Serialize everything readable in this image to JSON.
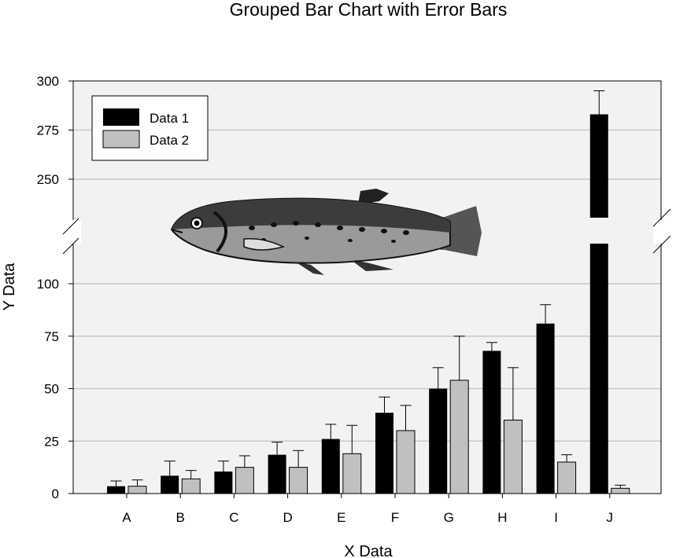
{
  "chart_data": {
    "type": "bar",
    "title": "Grouped Bar Chart with Error Bars",
    "xlabel": "X Data",
    "ylabel": "Y Data",
    "categories": [
      "A",
      "B",
      "C",
      "D",
      "E",
      "F",
      "G",
      "H",
      "I",
      "J"
    ],
    "series": [
      {
        "name": "Data 1",
        "color": "#000000",
        "values": [
          3.5,
          8.5,
          10.5,
          18.5,
          26,
          38.5,
          50,
          68,
          81,
          283
        ],
        "error_plus": [
          2.5,
          7,
          5,
          6,
          7,
          7.5,
          10,
          4,
          9,
          12
        ]
      },
      {
        "name": "Data 2",
        "color": "#c0c0c0",
        "values": [
          3.5,
          7,
          12.5,
          12.5,
          19,
          30,
          54,
          35,
          15,
          2.5
        ],
        "error_plus": [
          3,
          4,
          5.5,
          8,
          13.5,
          12,
          21,
          25,
          3.5,
          1.5
        ]
      }
    ],
    "axis_break": {
      "lower_max": 120,
      "upper_min": 230
    },
    "ylim": [
      0,
      300
    ],
    "yticks_lower": [
      0,
      25,
      50,
      75,
      100
    ],
    "yticks_upper": [
      250,
      275,
      300
    ],
    "grid": true,
    "legend_position": "top-left",
    "background_color": "#f2f2f2",
    "grid_color": "#c8c8c8",
    "image": "fish-illustration"
  }
}
